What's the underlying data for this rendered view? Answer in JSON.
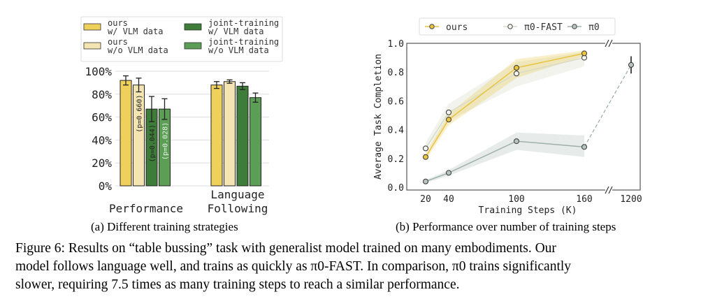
{
  "chart_data": [
    {
      "type": "bar",
      "title": "",
      "ylabel": "",
      "ylim": [
        0,
        100
      ],
      "yticks": [
        "0%",
        "20%",
        "40%",
        "60%",
        "80%",
        "100%"
      ],
      "categories": [
        "Performance",
        "Language Following"
      ],
      "category_lines": [
        [
          "Performance"
        ],
        [
          "Language",
          "Following"
        ]
      ],
      "legend_position": "top",
      "series": [
        {
          "name": "ours w/ VLM data",
          "lines": [
            "ours",
            "w/ VLM data"
          ],
          "color": "#efd05a",
          "values": [
            92,
            88
          ],
          "errors": [
            4,
            3
          ],
          "annotations": [
            "",
            ""
          ]
        },
        {
          "name": "ours w/o VLM data",
          "lines": [
            "ours",
            "w/o VLM data"
          ],
          "color": "#f3e4b1",
          "values": [
            88,
            91
          ],
          "errors": [
            6,
            1.5
          ],
          "annotations": [
            "(p=0.660)",
            ""
          ]
        },
        {
          "name": "joint-training w/ VLM data",
          "lines": [
            "joint-training",
            "w/ VLM data"
          ],
          "color": "#3e7d39",
          "values": [
            67,
            87
          ],
          "errors": [
            11,
            3
          ],
          "annotations": [
            "(p=0.044)",
            ""
          ]
        },
        {
          "name": "joint-training w/o VLM data",
          "lines": [
            "joint-training",
            "w/o VLM data"
          ],
          "color": "#5d9e57",
          "values": [
            67,
            77
          ],
          "errors": [
            9,
            4
          ],
          "annotations": [
            "(p=0.028)",
            ""
          ]
        }
      ],
      "caption": "(a) Different training strategies"
    },
    {
      "type": "line",
      "xlabel": "Training Steps (K)",
      "ylabel": "Average Task Completion",
      "ylim": [
        0,
        1
      ],
      "yticks": [
        "0.0",
        "0.2",
        "0.4",
        "0.6",
        "0.8",
        "1.0"
      ],
      "xticks": [
        "20",
        "40",
        "100",
        "160",
        "1200"
      ],
      "x": [
        20,
        40,
        100,
        160
      ],
      "axis_break": "between 160 and 1200",
      "legend_position": "top",
      "series": [
        {
          "name": "ours",
          "color": "#e8c440",
          "values": [
            0.21,
            0.47,
            0.83,
            0.93
          ],
          "band": [
            [
              0.19,
              0.23
            ],
            [
              0.43,
              0.51
            ],
            [
              0.76,
              0.89
            ],
            [
              0.91,
              0.95
            ]
          ]
        },
        {
          "name": "π0-FAST",
          "color": "#d8dccb",
          "values": [
            0.27,
            0.52,
            0.79,
            0.9
          ],
          "band": [
            [
              0.23,
              0.31
            ],
            [
              0.46,
              0.58
            ],
            [
              0.7,
              0.87
            ],
            [
              0.84,
              0.94
            ]
          ]
        },
        {
          "name": "π0",
          "color": "#9fb0aa",
          "values": [
            0.04,
            0.1,
            0.32,
            0.28
          ],
          "band": [
            [
              0.03,
              0.05
            ],
            [
              0.08,
              0.12
            ],
            [
              0.26,
              0.38
            ],
            [
              0.21,
              0.36
            ]
          ],
          "x1200": 0.85,
          "x1200_err": 0.06
        }
      ],
      "caption": "(b) Performance over number of training steps"
    }
  ],
  "figure_caption": [
    "Figure 6: Results on “table bussing” task with generalist model trained on many embodiments. Our",
    "model follows language well, and trains as quickly as π0-FAST. In comparison, π0 trains significantly",
    "slower, requiring 7.5 times as many training steps to reach a similar performance."
  ]
}
